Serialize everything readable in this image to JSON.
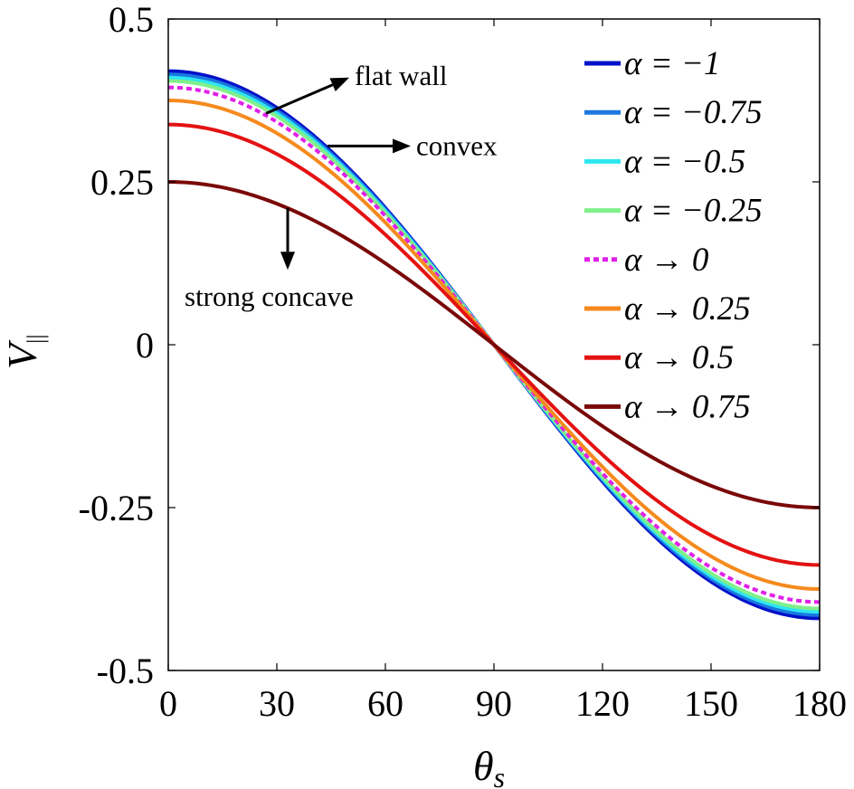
{
  "chart_data": {
    "type": "line",
    "xlabel": "θ",
    "xlabel_sub": "s",
    "ylabel": "V",
    "ylabel_sub": "||",
    "xlim": [
      0,
      180
    ],
    "ylim": [
      -0.5,
      0.5
    ],
    "xticks": [
      0,
      30,
      60,
      90,
      120,
      150,
      180
    ],
    "xtick_labels": [
      "0",
      "30",
      "60",
      "90",
      "120",
      "150",
      "180"
    ],
    "yticks": [
      0.5,
      0.25,
      0,
      -0.25,
      -0.5
    ],
    "ytick_labels": [
      "0.5",
      "0.25",
      "0",
      "-0.25",
      "-0.5"
    ],
    "grid": false,
    "legend_position": "top-right",
    "series": [
      {
        "name": "α = −1",
        "amplitude": 0.42,
        "color": "#0010c8",
        "dashed": false
      },
      {
        "name": "α = −0.75",
        "amplitude": 0.415,
        "color": "#1a78e0",
        "dashed": false
      },
      {
        "name": "α = −0.5",
        "amplitude": 0.41,
        "color": "#2ee6f0",
        "dashed": false
      },
      {
        "name": "α = −0.25",
        "amplitude": 0.405,
        "color": "#80f08a",
        "dashed": false
      },
      {
        "name": "α → 0",
        "amplitude": 0.395,
        "color": "#e020e8",
        "dashed": true
      },
      {
        "name": "α → 0.25",
        "amplitude": 0.375,
        "color": "#f58a1e",
        "dashed": false
      },
      {
        "name": "α → 0.5",
        "amplitude": 0.338,
        "color": "#e41212",
        "dashed": false
      },
      {
        "name": "α → 0.75",
        "amplitude": 0.25,
        "color": "#7a0808",
        "dashed": false
      }
    ],
    "curve_formula": "V = amplitude · cos(θs)",
    "x_values": [
      0,
      15,
      30,
      45,
      60,
      75,
      90,
      105,
      120,
      135,
      150,
      165,
      180
    ],
    "annotations": [
      {
        "text": "flat wall",
        "arrow_from": [
          27,
          0.355
        ],
        "arrow_to": [
          50,
          0.41
        ]
      },
      {
        "text": "convex",
        "arrow_from": [
          44,
          0.305
        ],
        "arrow_to": [
          67,
          0.305
        ]
      },
      {
        "text": "strong concave",
        "arrow_from": [
          33,
          0.21
        ],
        "arrow_to": [
          33,
          0.115
        ]
      }
    ]
  }
}
